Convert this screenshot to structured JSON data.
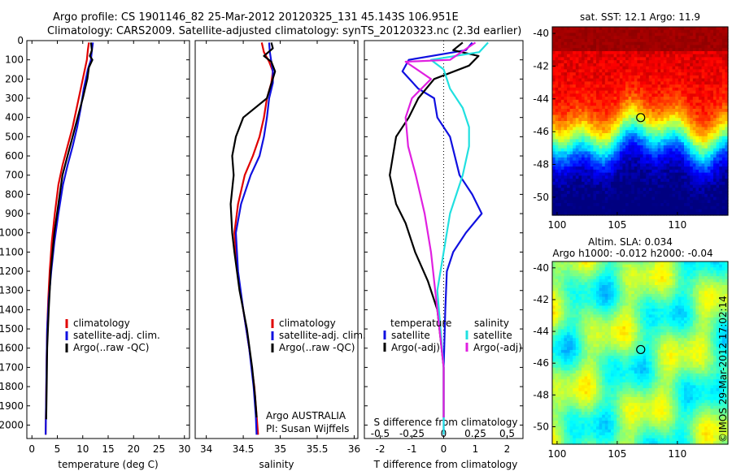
{
  "header": {
    "line1": "Argo profile: CS 1901146_82 25-Mar-2012 20120325_131 45.143S 106.951E",
    "line2": "Climatology: CARS2009. Satellite-adjusted climatology: synTS_20120323.nc (2.3d earlier)"
  },
  "colors": {
    "climatology": "#e00000",
    "satellite": "#1010e0",
    "argo": "#000000",
    "sal_satellite": "#20e0e0",
    "sal_argo": "#e020e0"
  },
  "chart_data": [
    {
      "type": "line",
      "xlabel": "temperature (deg C)",
      "ylabel": "",
      "xlim": [
        -1,
        31
      ],
      "ylim": [
        2070,
        0
      ],
      "xticks": [
        0,
        5,
        10,
        15,
        20,
        25,
        30
      ],
      "yticks": [
        0,
        100,
        200,
        300,
        400,
        500,
        600,
        700,
        800,
        900,
        1000,
        1100,
        1200,
        1300,
        1400,
        1500,
        1600,
        1700,
        1800,
        1900,
        2000
      ],
      "legend": [
        "climatology",
        "satellite-adj. clim.",
        "Argo(..raw -QC)"
      ],
      "series": [
        {
          "name": "climatology",
          "color": "#e00000",
          "x": [
            11.2,
            11.0,
            10.8,
            10.4,
            9.6,
            8.8,
            8.0,
            7.0,
            6.0,
            5.2,
            4.5,
            3.9,
            3.5,
            3.2,
            3.0,
            2.9,
            2.8,
            2.7
          ],
          "y": [
            10,
            50,
            100,
            150,
            250,
            350,
            450,
            550,
            650,
            750,
            900,
            1050,
            1200,
            1350,
            1500,
            1650,
            1850,
            2050
          ]
        },
        {
          "name": "satellite-adj. clim.",
          "color": "#1010e0",
          "x": [
            12.0,
            11.8,
            11.6,
            11.0,
            10.2,
            9.6,
            8.9,
            8.0,
            7.0,
            6.1,
            5.2,
            4.4,
            3.8,
            3.3,
            3.0,
            2.9,
            2.8,
            2.7
          ],
          "y": [
            10,
            50,
            100,
            150,
            250,
            350,
            450,
            550,
            650,
            750,
            900,
            1050,
            1200,
            1350,
            1500,
            1650,
            1850,
            2050
          ]
        },
        {
          "name": "Argo(..raw -QC)",
          "color": "#000000",
          "x": [
            11.6,
            11.8,
            11.4,
            11.9,
            11.2,
            10.9,
            10.0,
            9.0,
            8.0,
            7.0,
            6.0,
            5.2,
            4.4,
            3.7,
            3.3,
            3.0,
            2.9,
            2.8
          ],
          "y": [
            10,
            50,
            80,
            100,
            140,
            200,
            300,
            400,
            500,
            600,
            700,
            850,
            1000,
            1200,
            1400,
            1600,
            1800,
            1970
          ]
        }
      ]
    },
    {
      "type": "line",
      "xlabel": "salinity",
      "ylabel": "",
      "xlim": [
        33.85,
        36.05
      ],
      "ylim": [
        2070,
        0
      ],
      "xticks": [
        34,
        34.5,
        35,
        35.5,
        36
      ],
      "xticklabels": [
        "34",
        "34.5",
        "35",
        "35.5",
        "36"
      ],
      "legend": [
        "climatology",
        "satellite-adj. clim.",
        "Argo(..raw -QC)"
      ],
      "series": [
        {
          "name": "climatology",
          "color": "#e00000",
          "x": [
            34.75,
            34.78,
            34.85,
            34.9,
            34.88,
            34.82,
            34.78,
            34.72,
            34.63,
            34.52,
            34.43,
            34.38,
            34.42,
            34.5,
            34.58,
            34.65,
            34.68,
            34.7
          ],
          "y": [
            10,
            60,
            110,
            160,
            220,
            300,
            400,
            500,
            600,
            700,
            850,
            1000,
            1200,
            1400,
            1600,
            1800,
            1950,
            2050
          ]
        },
        {
          "name": "satellite-adj. clim.",
          "color": "#1010e0",
          "x": [
            34.85,
            34.86,
            34.88,
            34.9,
            34.9,
            34.85,
            34.82,
            34.78,
            34.72,
            34.6,
            34.47,
            34.4,
            34.43,
            34.5,
            34.58,
            34.64,
            34.67,
            34.68
          ],
          "y": [
            10,
            60,
            110,
            160,
            220,
            300,
            400,
            500,
            600,
            700,
            850,
            1000,
            1200,
            1400,
            1600,
            1800,
            1950,
            2050
          ]
        },
        {
          "name": "Argo(..raw -QC)",
          "color": "#000000",
          "x": [
            34.88,
            34.9,
            34.78,
            34.88,
            34.93,
            34.82,
            34.5,
            34.4,
            34.35,
            34.37,
            34.33,
            34.35,
            34.38,
            34.45,
            34.55,
            34.62,
            34.66,
            34.68
          ],
          "y": [
            10,
            40,
            80,
            110,
            160,
            300,
            400,
            500,
            600,
            700,
            850,
            1000,
            1100,
            1300,
            1500,
            1700,
            1850,
            1960
          ]
        }
      ],
      "annotations": [
        "Argo AUSTRALIA",
        "PI: Susan Wijffels"
      ]
    },
    {
      "type": "line",
      "xlabel": "T difference from climatology",
      "xlabel_top": "S difference from climatology",
      "ylabel": "",
      "xlim": [
        -2.5,
        2.5
      ],
      "ylim": [
        2070,
        0
      ],
      "xticks": [
        -2,
        -1,
        0,
        1,
        2
      ],
      "xticks_top": [
        -0.5,
        -0.25,
        0,
        0.25,
        0.5
      ],
      "xticklabels_top": [
        "-0.5",
        "-0.25",
        "0",
        "0.25",
        "0.5"
      ],
      "legend_temperature": {
        "title": "temperature",
        "items": [
          "satellite",
          "Argo(-adj)"
        ]
      },
      "legend_salinity": {
        "title": "salinity",
        "items": [
          "satellite",
          "Argo(-adj)"
        ]
      },
      "series": [
        {
          "name": "satellite",
          "group": "temperature",
          "color": "#1010e0",
          "x": [
            0.9,
            0.7,
            -1.1,
            -1.3,
            -0.8,
            -0.3,
            -0.2,
            0.2,
            0.5,
            0.9,
            1.2,
            0.7,
            0.3,
            0.1,
            0.05,
            0.0,
            0.0
          ],
          "y": [
            10,
            50,
            100,
            160,
            250,
            300,
            400,
            500,
            700,
            800,
            900,
            1000,
            1100,
            1200,
            1400,
            1700,
            2050
          ]
        },
        {
          "name": "Argo(-adj)",
          "group": "temperature",
          "color": "#000000",
          "x": [
            0.6,
            0.3,
            1.1,
            0.8,
            -0.3,
            -0.8,
            -1.1,
            -1.5,
            -1.6,
            -1.7,
            -1.5,
            -1.2,
            -0.9,
            -0.5,
            -0.2,
            0.0,
            0.0
          ],
          "y": [
            10,
            50,
            80,
            130,
            200,
            300,
            400,
            500,
            600,
            700,
            850,
            950,
            1100,
            1250,
            1400,
            1700,
            1960
          ]
        },
        {
          "name": "satellite",
          "group": "salinity",
          "color": "#20e0e0",
          "x": [
            0.35,
            0.28,
            -0.1,
            0.0,
            0.05,
            0.15,
            0.2,
            0.2,
            0.15,
            0.05,
            0.0,
            -0.05,
            0.0,
            0.0
          ],
          "y": [
            10,
            60,
            100,
            150,
            250,
            350,
            450,
            550,
            700,
            900,
            1100,
            1300,
            1700,
            2050
          ]
        },
        {
          "name": "Argo(-adj)",
          "group": "salinity",
          "color": "#e020e0",
          "x": [
            0.25,
            0.05,
            -0.3,
            -0.1,
            -0.25,
            -0.3,
            -0.28,
            -0.22,
            -0.15,
            -0.1,
            -0.05,
            0.0,
            0.0
          ],
          "y": [
            10,
            100,
            110,
            200,
            300,
            400,
            550,
            700,
            900,
            1100,
            1400,
            1700,
            1960
          ]
        }
      ]
    },
    {
      "type": "heatmap",
      "title": "sat. SST: 12.1  Argo: 11.9",
      "xlim": [
        99.6,
        114.2
      ],
      "ylim": [
        -51.1,
        -39.6
      ],
      "xticks": [
        100,
        105,
        110
      ],
      "yticks": [
        -40,
        -42,
        -44,
        -46,
        -48,
        -50
      ],
      "marker": {
        "lon": 106.951,
        "lat": -45.143
      }
    },
    {
      "type": "heatmap",
      "title_line1": "Altim. SLA: 0.034",
      "title_line2": "Argo h1000: -0.012  h2000: -0.04",
      "xlim": [
        99.6,
        114.2
      ],
      "ylim": [
        -51.1,
        -39.6
      ],
      "xticks": [
        100,
        105,
        110
      ],
      "yticks": [
        -40,
        -42,
        -44,
        -46,
        -48,
        -50
      ],
      "marker": {
        "lon": 106.951,
        "lat": -45.143
      }
    }
  ],
  "footer_side_text": "©IMOS 29-Mar-2012 17:02:14"
}
